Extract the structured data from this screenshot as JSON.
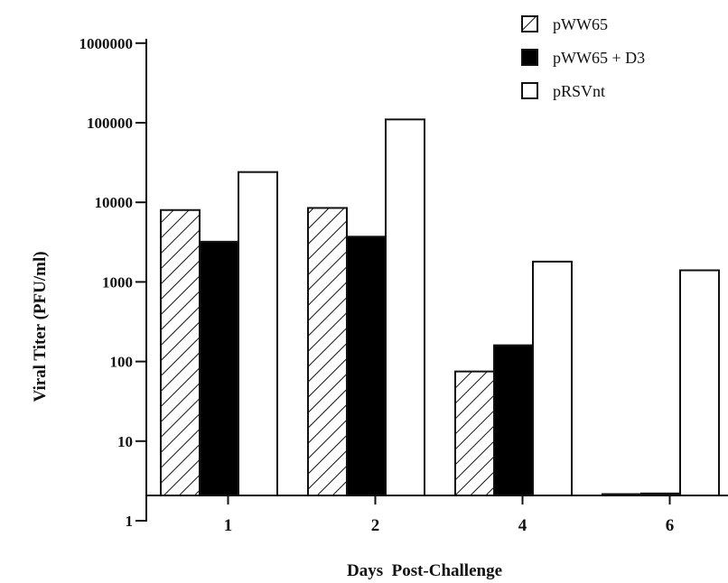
{
  "chart_data": {
    "type": "bar",
    "title": "",
    "xlabel": "Days  Post-Challenge",
    "ylabel": "Viral  Titer  (PFU/ml)",
    "yscale": "log",
    "ylim": [
      1,
      1000000
    ],
    "yticks": [
      {
        "value": 1,
        "label": "1"
      },
      {
        "value": 10,
        "label": "10"
      },
      {
        "value": 100,
        "label": "100"
      },
      {
        "value": 1000,
        "label": "1000"
      },
      {
        "value": 10000,
        "label": "10000"
      },
      {
        "value": 100000,
        "label": "100000"
      },
      {
        "value": 1000000,
        "label": "1000000"
      }
    ],
    "categories": [
      "1",
      "2",
      "4",
      "6"
    ],
    "series": [
      {
        "name": "pWW65",
        "fill": "hatched",
        "values": [
          8000,
          8500,
          75,
          2
        ]
      },
      {
        "name": "pWW65 + D3",
        "fill": "#000000",
        "values": [
          3200,
          3700,
          160,
          2.2
        ]
      },
      {
        "name": "pRSVnt",
        "fill": "#ffffff",
        "values": [
          24000,
          110000,
          1800,
          1400
        ]
      }
    ],
    "legend": "top-right",
    "grid": false
  }
}
